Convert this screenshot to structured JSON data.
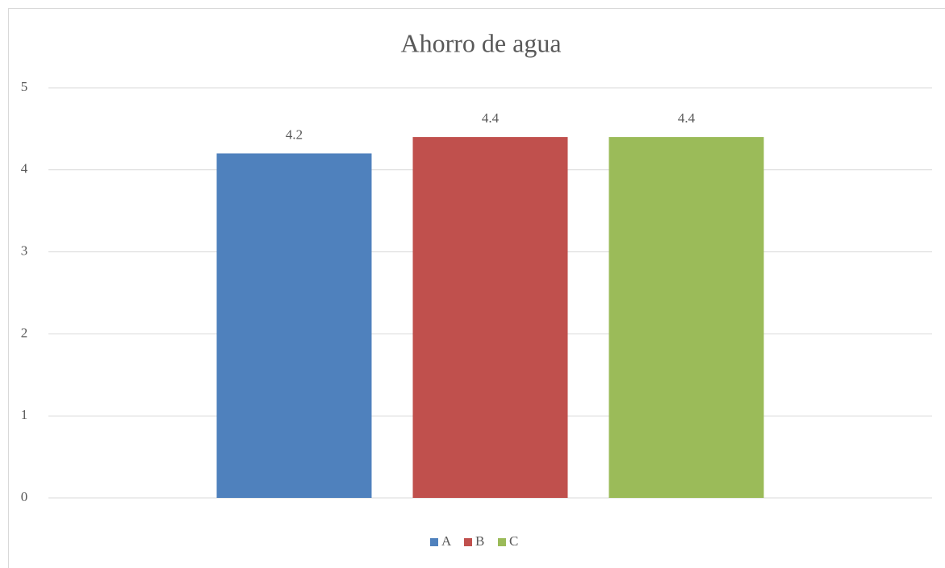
{
  "chart_data": {
    "type": "bar",
    "title": "Ahorro de agua",
    "categories": [
      null
    ],
    "series": [
      {
        "name": "A",
        "color": "#4f81bd",
        "values": [
          4.2
        ]
      },
      {
        "name": "B",
        "color": "#c0504d",
        "values": [
          4.4
        ]
      },
      {
        "name": "C",
        "color": "#9bbb59",
        "values": [
          4.4
        ]
      }
    ],
    "ylim": [
      0,
      5
    ],
    "yticks": [
      0,
      1,
      2,
      3,
      4,
      5
    ],
    "grid": true,
    "legend": "bottom"
  }
}
